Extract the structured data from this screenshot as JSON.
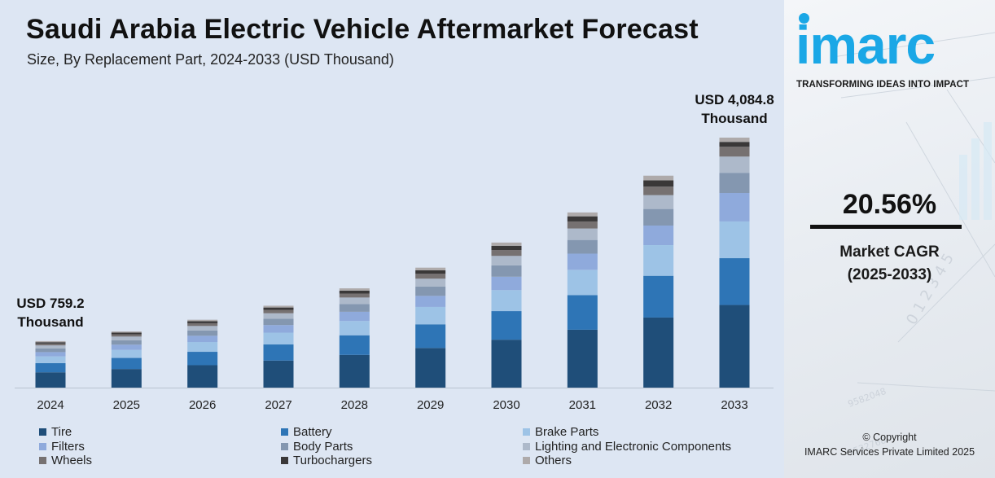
{
  "header": {
    "title": "Saudi Arabia Electric Vehicle Aftermarket Forecast",
    "subtitle": "Size, By Replacement Part, 2024-2033 (USD Thousand)"
  },
  "chart_data": {
    "type": "bar",
    "stacked": true,
    "categories": [
      "2024",
      "2025",
      "2026",
      "2027",
      "2028",
      "2029",
      "2030",
      "2031",
      "2032",
      "2033"
    ],
    "totals": [
      759.2,
      918,
      1109,
      1338,
      1622,
      1960,
      2370,
      2862,
      3463,
      4084.8
    ],
    "series": [
      {
        "name": "Tire",
        "color": "#1f4e79",
        "values": [
          250,
          304,
          366,
          442,
          535,
          648,
          783,
          946,
          1145,
          1350
        ]
      },
      {
        "name": "Battery",
        "color": "#2e75b6",
        "values": [
          150,
          181,
          219,
          263,
          320,
          386,
          467,
          564,
          682,
          765
        ]
      },
      {
        "name": "Brake Parts",
        "color": "#9dc3e6",
        "values": [
          110,
          132,
          160,
          193,
          234,
          284,
          343,
          415,
          501,
          600
        ]
      },
      {
        "name": "Filters",
        "color": "#8faadc",
        "values": [
          70,
          85,
          102,
          124,
          150,
          181,
          219,
          264,
          320,
          465
        ]
      },
      {
        "name": "Body Parts",
        "color": "#8497b0",
        "values": [
          60,
          72,
          87,
          105,
          127,
          153,
          185,
          224,
          271,
          330
        ]
      },
      {
        "name": "Lighting and Electronic Components",
        "color": "#adb9ca",
        "values": [
          50,
          60,
          73,
          88,
          106,
          128,
          155,
          187,
          226,
          265
        ]
      },
      {
        "name": "Wheels",
        "color": "#767171",
        "values": [
          30,
          37,
          45,
          54,
          65,
          79,
          96,
          115,
          139,
          160
        ]
      },
      {
        "name": "Turbochargers",
        "color": "#3a3838",
        "values": [
          22,
          27,
          33,
          40,
          48,
          58,
          70,
          84,
          102,
          80
        ]
      },
      {
        "name": "Others",
        "color": "#aeaaaa",
        "values": [
          17.2,
          20,
          24,
          29,
          37,
          43,
          52,
          63,
          77,
          69.8
        ]
      }
    ],
    "annotations": [
      {
        "category": "2024",
        "text_line1": "USD 759.2",
        "text_line2": "Thousand"
      },
      {
        "category": "2033",
        "text_line1": "USD 4,084.8",
        "text_line2": "Thousand"
      }
    ],
    "ylim": [
      0,
      4084.8
    ],
    "grid": false,
    "legend_position": "bottom"
  },
  "sidebar": {
    "logo": "imarc",
    "tagline": "TRANSFORMING IDEAS INTO IMPACT",
    "cagr_value": "20.56%",
    "cagr_label": "Market CAGR",
    "cagr_period": "(2025-2033)",
    "copyright_line1": "© Copyright",
    "copyright_line2": "IMARC Services Private Limited 2025",
    "brand_color": "#1aa7e6"
  }
}
